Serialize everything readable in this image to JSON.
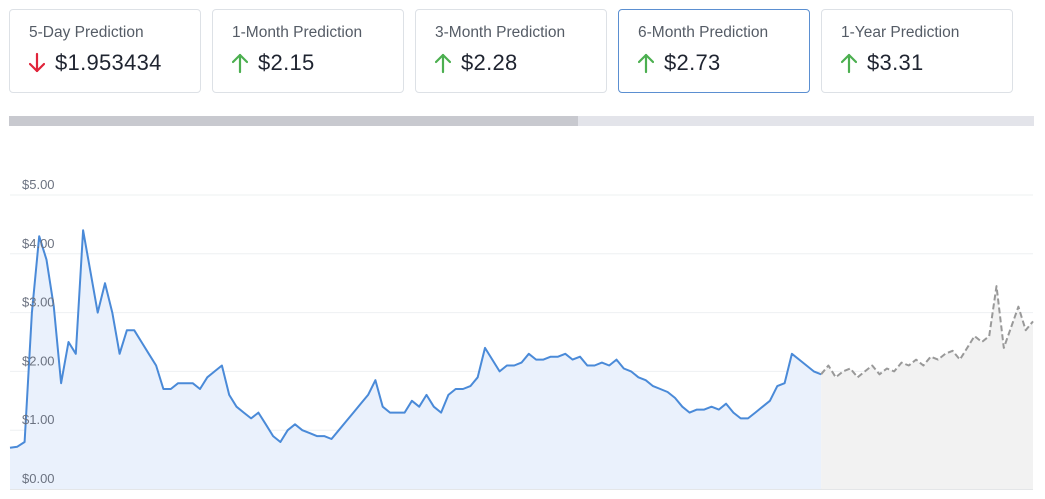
{
  "cards": [
    {
      "label": "5-Day Prediction",
      "value": "$1.953434",
      "direction": "down"
    },
    {
      "label": "1-Month Prediction",
      "value": "$2.15",
      "direction": "up"
    },
    {
      "label": "3-Month Prediction",
      "value": "$2.28",
      "direction": "up"
    },
    {
      "label": "6-Month Prediction",
      "value": "$2.73",
      "direction": "up"
    },
    {
      "label": "1-Year Prediction",
      "value": "$3.31",
      "direction": "up"
    }
  ],
  "chart_data": {
    "type": "line",
    "ylim": [
      0,
      5
    ],
    "yticks": [
      {
        "value": 0,
        "label": "$0.00"
      },
      {
        "value": 1,
        "label": "$1.00"
      },
      {
        "value": 2,
        "label": "$2.00"
      },
      {
        "value": 3,
        "label": "$3.00"
      },
      {
        "value": 4,
        "label": "$4.00"
      },
      {
        "value": 5,
        "label": "$5.00"
      }
    ],
    "grid": true,
    "series": [
      {
        "color": "#4a8ad8",
        "dashed": false,
        "fill": "#eaf1fc",
        "values": [
          0.7,
          0.72,
          0.8,
          3.0,
          4.3,
          3.9,
          3.1,
          1.8,
          2.5,
          2.3,
          4.4,
          3.7,
          3.0,
          3.5,
          3.0,
          2.3,
          2.7,
          2.7,
          2.5,
          2.3,
          2.1,
          1.7,
          1.7,
          1.8,
          1.8,
          1.8,
          1.7,
          1.9,
          2.0,
          2.1,
          1.6,
          1.4,
          1.3,
          1.2,
          1.3,
          1.1,
          0.9,
          0.8,
          1.0,
          1.1,
          1.0,
          0.95,
          0.9,
          0.9,
          0.85,
          1.0,
          1.15,
          1.3,
          1.45,
          1.6,
          1.85,
          1.4,
          1.3,
          1.3,
          1.3,
          1.5,
          1.4,
          1.6,
          1.4,
          1.3,
          1.6,
          1.7,
          1.7,
          1.75,
          1.9,
          2.4,
          2.2,
          2.0,
          2.1,
          2.1,
          2.15,
          2.3,
          2.2,
          2.2,
          2.25,
          2.25,
          2.3,
          2.2,
          2.25,
          2.1,
          2.1,
          2.15,
          2.1,
          2.2,
          2.05,
          2.0,
          1.9,
          1.85,
          1.75,
          1.7,
          1.65,
          1.55,
          1.4,
          1.3,
          1.35,
          1.35,
          1.4,
          1.35,
          1.45,
          1.3,
          1.2,
          1.2,
          1.3,
          1.4,
          1.5,
          1.75,
          1.8,
          2.3,
          2.2,
          2.1,
          2.0,
          1.95
        ]
      },
      {
        "color": "#999999",
        "dashed": true,
        "fill": "#f2f2f2",
        "values": [
          null,
          null,
          null,
          null,
          null,
          null,
          null,
          null,
          null,
          null,
          null,
          null,
          null,
          null,
          null,
          null,
          null,
          null,
          null,
          null,
          null,
          null,
          null,
          null,
          null,
          null,
          null,
          null,
          null,
          null,
          null,
          null,
          null,
          null,
          null,
          null,
          null,
          null,
          null,
          null,
          null,
          null,
          null,
          null,
          null,
          null,
          null,
          null,
          null,
          null,
          null,
          null,
          null,
          null,
          null,
          null,
          null,
          null,
          null,
          null,
          null,
          null,
          null,
          null,
          null,
          null,
          null,
          null,
          null,
          null,
          null,
          null,
          null,
          null,
          null,
          null,
          null,
          null,
          null,
          null,
          null,
          null,
          null,
          null,
          null,
          null,
          null,
          null,
          null,
          null,
          null,
          null,
          null,
          null,
          null,
          null,
          null,
          null,
          null,
          null,
          null,
          null,
          null,
          null,
          null,
          null,
          null,
          null,
          null,
          null,
          null,
          1.95,
          2.1,
          1.9,
          2.0,
          2.05,
          1.9,
          2.0,
          2.1,
          1.95,
          2.05,
          2.0,
          2.15,
          2.1,
          2.2,
          2.1,
          2.25,
          2.2,
          2.3,
          2.35,
          2.2,
          2.4,
          2.6,
          2.5,
          2.6,
          3.45,
          2.4,
          2.75,
          3.1,
          2.7,
          2.85
        ]
      }
    ]
  }
}
